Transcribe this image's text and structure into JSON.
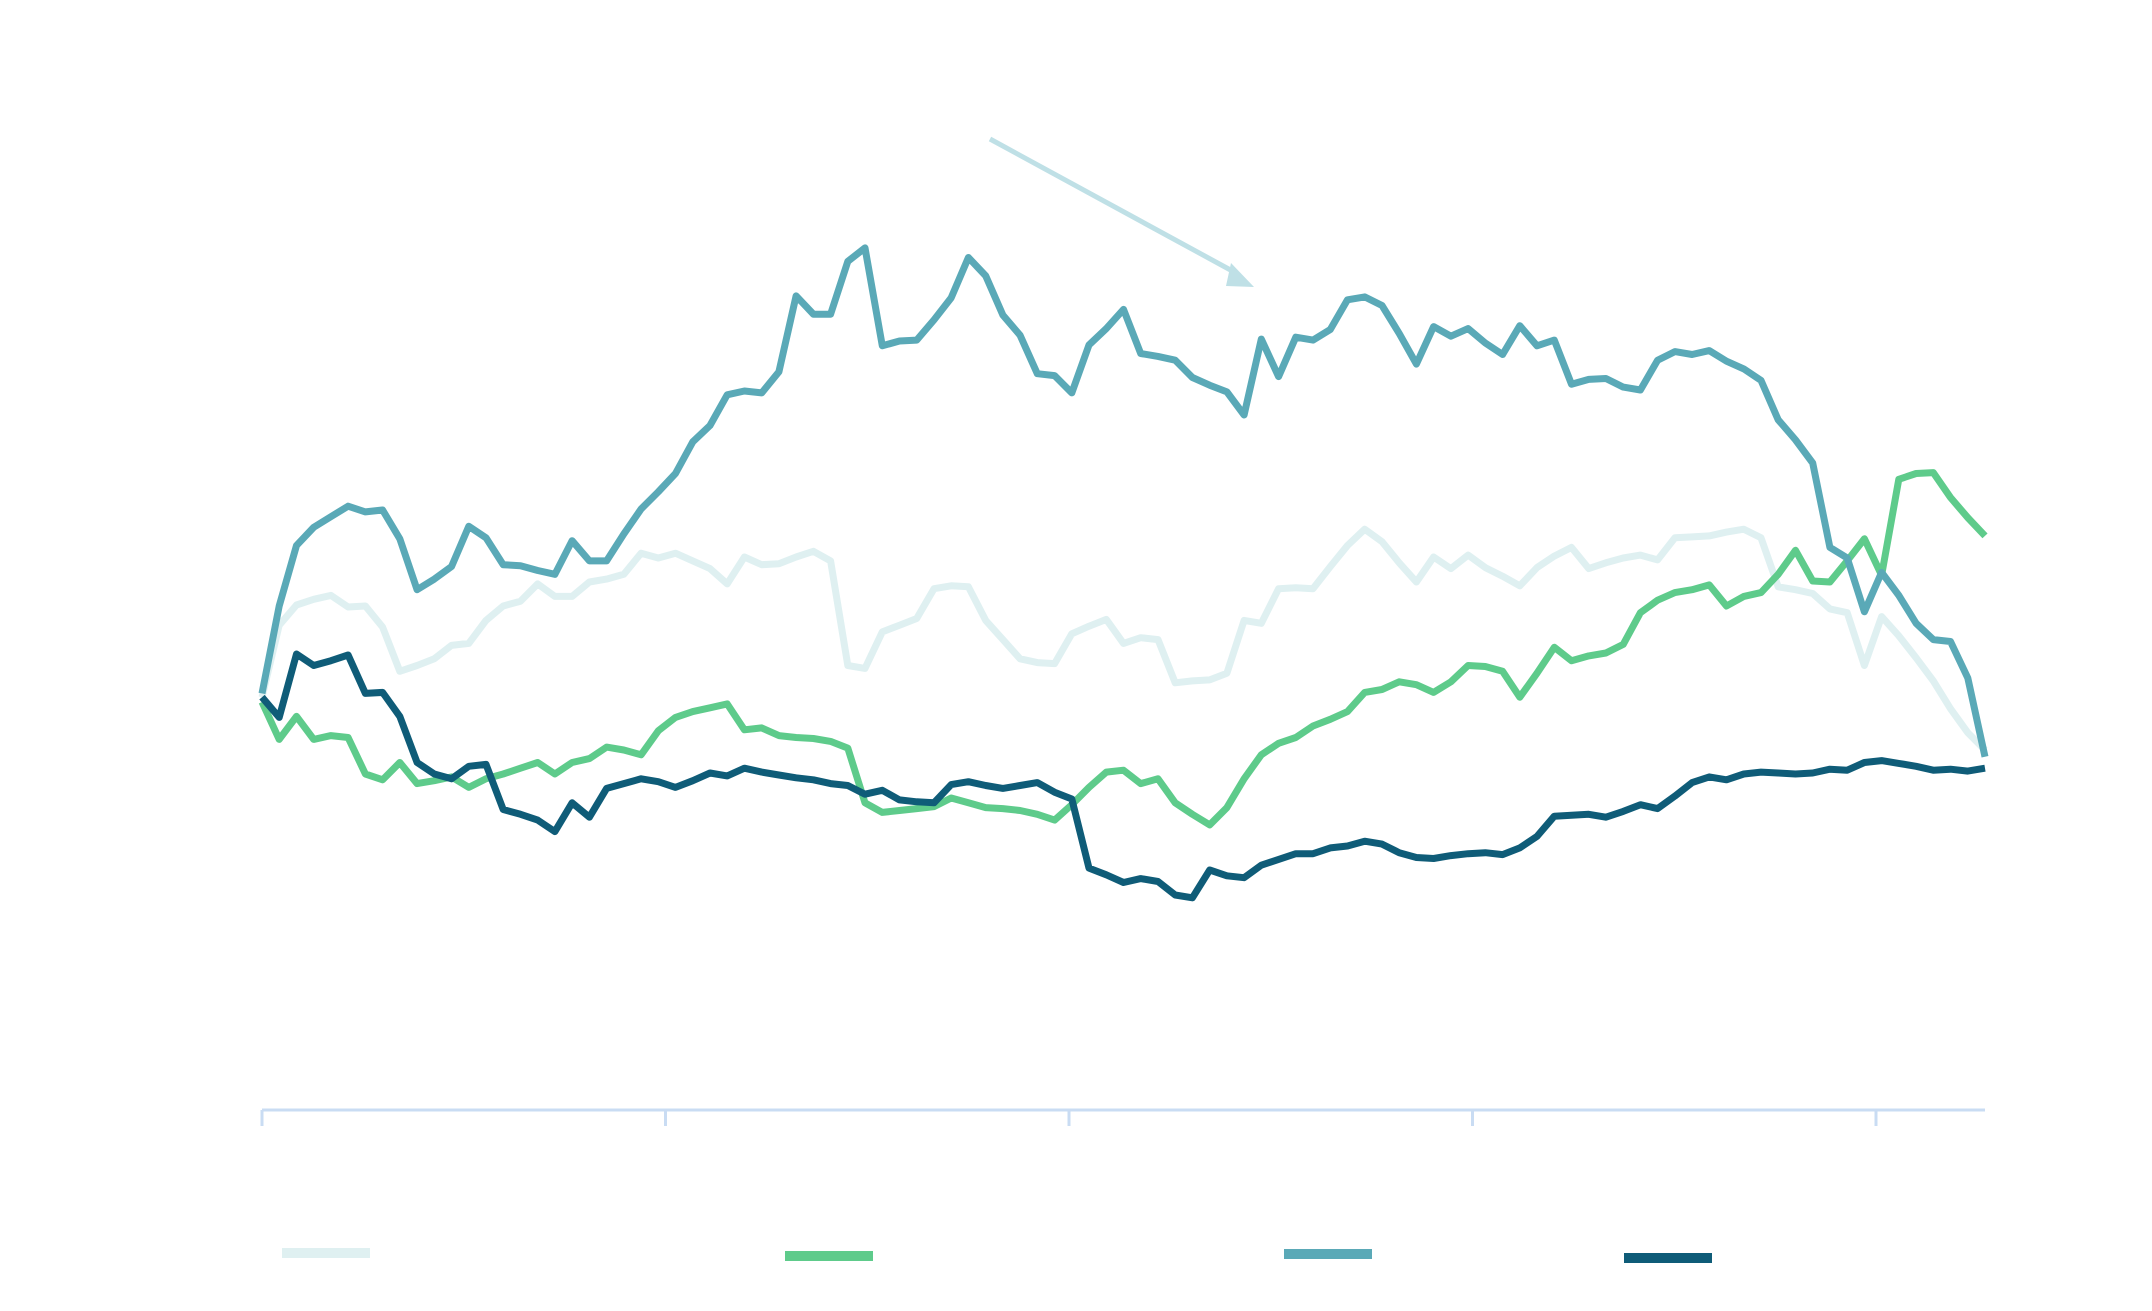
{
  "chart_data": {
    "type": "line",
    "title": "",
    "xlabel": "",
    "ylabel": "",
    "grid": false,
    "legend": "bottom",
    "ylim": [
      0,
      100
    ],
    "x_count": 101,
    "x_ticks": [
      0,
      25,
      50,
      75,
      100
    ],
    "series": [
      {
        "color": "#dff0f1",
        "values": [
          43.0,
          50.5,
          52.6,
          53.2,
          53.6,
          52.4,
          52.5,
          50.3,
          45.7,
          46.3,
          47.0,
          48.4,
          48.6,
          51.0,
          52.5,
          53.0,
          54.8,
          53.5,
          53.5,
          55.0,
          55.3,
          55.8,
          58.0,
          57.5,
          58.0,
          57.2,
          56.4,
          54.8,
          57.6,
          56.8,
          56.9,
          57.6,
          58.2,
          57.2,
          46.3,
          46.0,
          49.8,
          50.5,
          51.2,
          54.3,
          54.6,
          54.5,
          51.0,
          49.0,
          47.0,
          46.6,
          46.5,
          49.6,
          50.4,
          51.1,
          48.6,
          49.2,
          49.0,
          44.5,
          44.7,
          44.8,
          45.5,
          51.0,
          50.7,
          54.3,
          54.4,
          54.3,
          56.6,
          58.8,
          60.5,
          59.2,
          57.0,
          55.0,
          57.6,
          56.4,
          57.8,
          56.5,
          55.6,
          54.6,
          56.5,
          57.7,
          58.6,
          56.4,
          57.0,
          57.5,
          57.8,
          57.3,
          59.6,
          59.7,
          59.8,
          60.2,
          60.5,
          59.6,
          54.5,
          54.2,
          53.8,
          52.2,
          51.8,
          46.3,
          51.4,
          49.4,
          47.1,
          44.7,
          41.8,
          39.3,
          37.5
        ]
      },
      {
        "color": "#5ecb8b",
        "values": [
          42.5,
          38.6,
          41.0,
          38.6,
          39.0,
          38.8,
          35.0,
          34.4,
          36.2,
          34.0,
          34.3,
          34.7,
          33.6,
          34.5,
          35.0,
          35.6,
          36.2,
          35.0,
          36.2,
          36.6,
          37.8,
          37.5,
          37.0,
          39.5,
          40.9,
          41.5,
          41.9,
          42.3,
          39.6,
          39.8,
          39.0,
          38.8,
          38.7,
          38.4,
          37.7,
          32.0,
          31.0,
          31.2,
          31.4,
          31.6,
          32.5,
          32.0,
          31.5,
          31.4,
          31.2,
          30.8,
          30.2,
          31.8,
          33.6,
          35.2,
          35.4,
          34.0,
          34.5,
          32.0,
          30.8,
          29.7,
          31.5,
          34.5,
          37.0,
          38.2,
          38.8,
          40.0,
          40.7,
          41.5,
          43.5,
          43.8,
          44.6,
          44.3,
          43.5,
          44.6,
          46.3,
          46.2,
          45.7,
          43.0,
          45.5,
          48.2,
          46.8,
          47.3,
          47.6,
          48.5,
          51.8,
          53.1,
          53.9,
          54.2,
          54.7,
          52.5,
          53.5,
          53.9,
          55.8,
          58.3,
          55.1,
          55.0,
          57.2,
          59.5,
          55.7,
          65.7,
          66.3,
          66.4,
          63.8,
          61.7,
          59.8
        ]
      },
      {
        "color": "#5aa9b7",
        "values": [
          43.4,
          52.5,
          58.8,
          60.7,
          61.8,
          62.9,
          62.3,
          62.5,
          59.5,
          54.2,
          55.3,
          56.6,
          60.8,
          59.6,
          56.8,
          56.7,
          56.2,
          55.8,
          59.3,
          57.2,
          57.2,
          60.0,
          62.6,
          64.4,
          66.3,
          69.6,
          71.3,
          74.5,
          74.9,
          74.7,
          76.9,
          84.8,
          82.9,
          82.9,
          88.4,
          89.8,
          79.6,
          80.1,
          80.2,
          82.3,
          84.6,
          88.8,
          86.9,
          82.8,
          80.7,
          76.7,
          76.5,
          74.7,
          79.7,
          81.4,
          83.4,
          78.8,
          78.5,
          78.1,
          76.3,
          75.5,
          74.8,
          72.4,
          80.3,
          76.4,
          80.5,
          80.2,
          81.3,
          84.4,
          84.7,
          83.8,
          80.9,
          77.7,
          81.6,
          80.6,
          81.4,
          79.9,
          78.7,
          81.7,
          79.6,
          80.2,
          75.6,
          76.1,
          76.2,
          75.3,
          75.0,
          78.1,
          79.0,
          78.7,
          79.1,
          78.0,
          77.2,
          76.0,
          71.9,
          69.8,
          67.4,
          58.6,
          57.5,
          51.9,
          56.0,
          53.6,
          50.7,
          49.0,
          48.8,
          45.0,
          36.8
        ]
      },
      {
        "color": "#0f5c78",
        "values": [
          43.0,
          40.9,
          47.5,
          46.3,
          46.8,
          47.4,
          43.4,
          43.5,
          41.0,
          36.2,
          35.0,
          34.5,
          35.8,
          36.0,
          31.3,
          30.8,
          30.2,
          29.0,
          32.0,
          30.5,
          33.5,
          34.0,
          34.5,
          34.2,
          33.6,
          34.3,
          35.1,
          34.8,
          35.6,
          35.2,
          34.9,
          34.6,
          34.4,
          34.0,
          33.8,
          32.9,
          33.3,
          32.3,
          32.1,
          32.0,
          33.9,
          34.2,
          33.8,
          33.5,
          33.8,
          34.1,
          33.1,
          32.4,
          25.2,
          24.5,
          23.7,
          24.1,
          23.8,
          22.4,
          22.1,
          25.0,
          24.4,
          24.2,
          25.5,
          26.1,
          26.7,
          26.7,
          27.3,
          27.5,
          28.0,
          27.7,
          26.8,
          26.3,
          26.2,
          26.5,
          26.7,
          26.8,
          26.6,
          27.3,
          28.5,
          30.6,
          30.7,
          30.8,
          30.5,
          31.1,
          31.8,
          31.4,
          32.7,
          34.1,
          34.7,
          34.4,
          35.0,
          35.2,
          35.1,
          35.0,
          35.1,
          35.5,
          35.4,
          36.2,
          36.4,
          36.1,
          35.8,
          35.4,
          35.5,
          35.3,
          35.6
        ]
      }
    ],
    "legend_entries": [
      {
        "color": "#dff0f1",
        "label": ""
      },
      {
        "color": "#5ecb8b",
        "label": ""
      },
      {
        "color": "#5aa9b7",
        "label": ""
      },
      {
        "color": "#0f5c78",
        "label": ""
      }
    ]
  }
}
